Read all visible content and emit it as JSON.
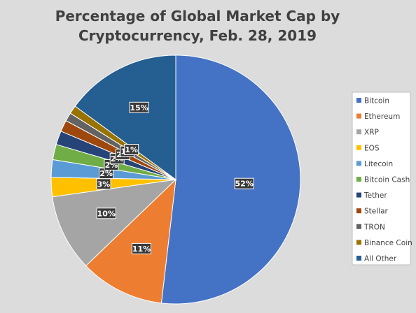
{
  "chart_data": {
    "type": "pie",
    "title_lines": [
      "Percentage of Global Market Cap by",
      "Cryptocurrency, Feb. 28, 2019"
    ],
    "legend_position": "right",
    "series": [
      {
        "name": "Bitcoin",
        "value": 52,
        "label": "52%",
        "color": "#4472c4"
      },
      {
        "name": "Ethereum",
        "value": 11,
        "label": "11%",
        "color": "#ed7d31"
      },
      {
        "name": "XRP",
        "value": 10,
        "label": "10%",
        "color": "#a5a5a5"
      },
      {
        "name": "EOS",
        "value": 2.5,
        "label": "3%",
        "color": "#ffc000"
      },
      {
        "name": "Litecoin",
        "value": 2.3,
        "label": "2%",
        "color": "#5b9bd5"
      },
      {
        "name": "Bitcoin Cash",
        "value": 2.0,
        "label": "2%",
        "color": "#70ad47"
      },
      {
        "name": "Tether",
        "value": 1.8,
        "label": "2%",
        "color": "#264478"
      },
      {
        "name": "Stellar",
        "value": 1.5,
        "label": "2%",
        "color": "#9e480e"
      },
      {
        "name": "TRON",
        "value": 1.1,
        "label": "1%",
        "color": "#636363"
      },
      {
        "name": "Binance Coin",
        "value": 1.1,
        "label": "1%",
        "color": "#997300"
      },
      {
        "name": "All Other",
        "value": 15,
        "label": "15%",
        "color": "#255e91"
      }
    ]
  }
}
